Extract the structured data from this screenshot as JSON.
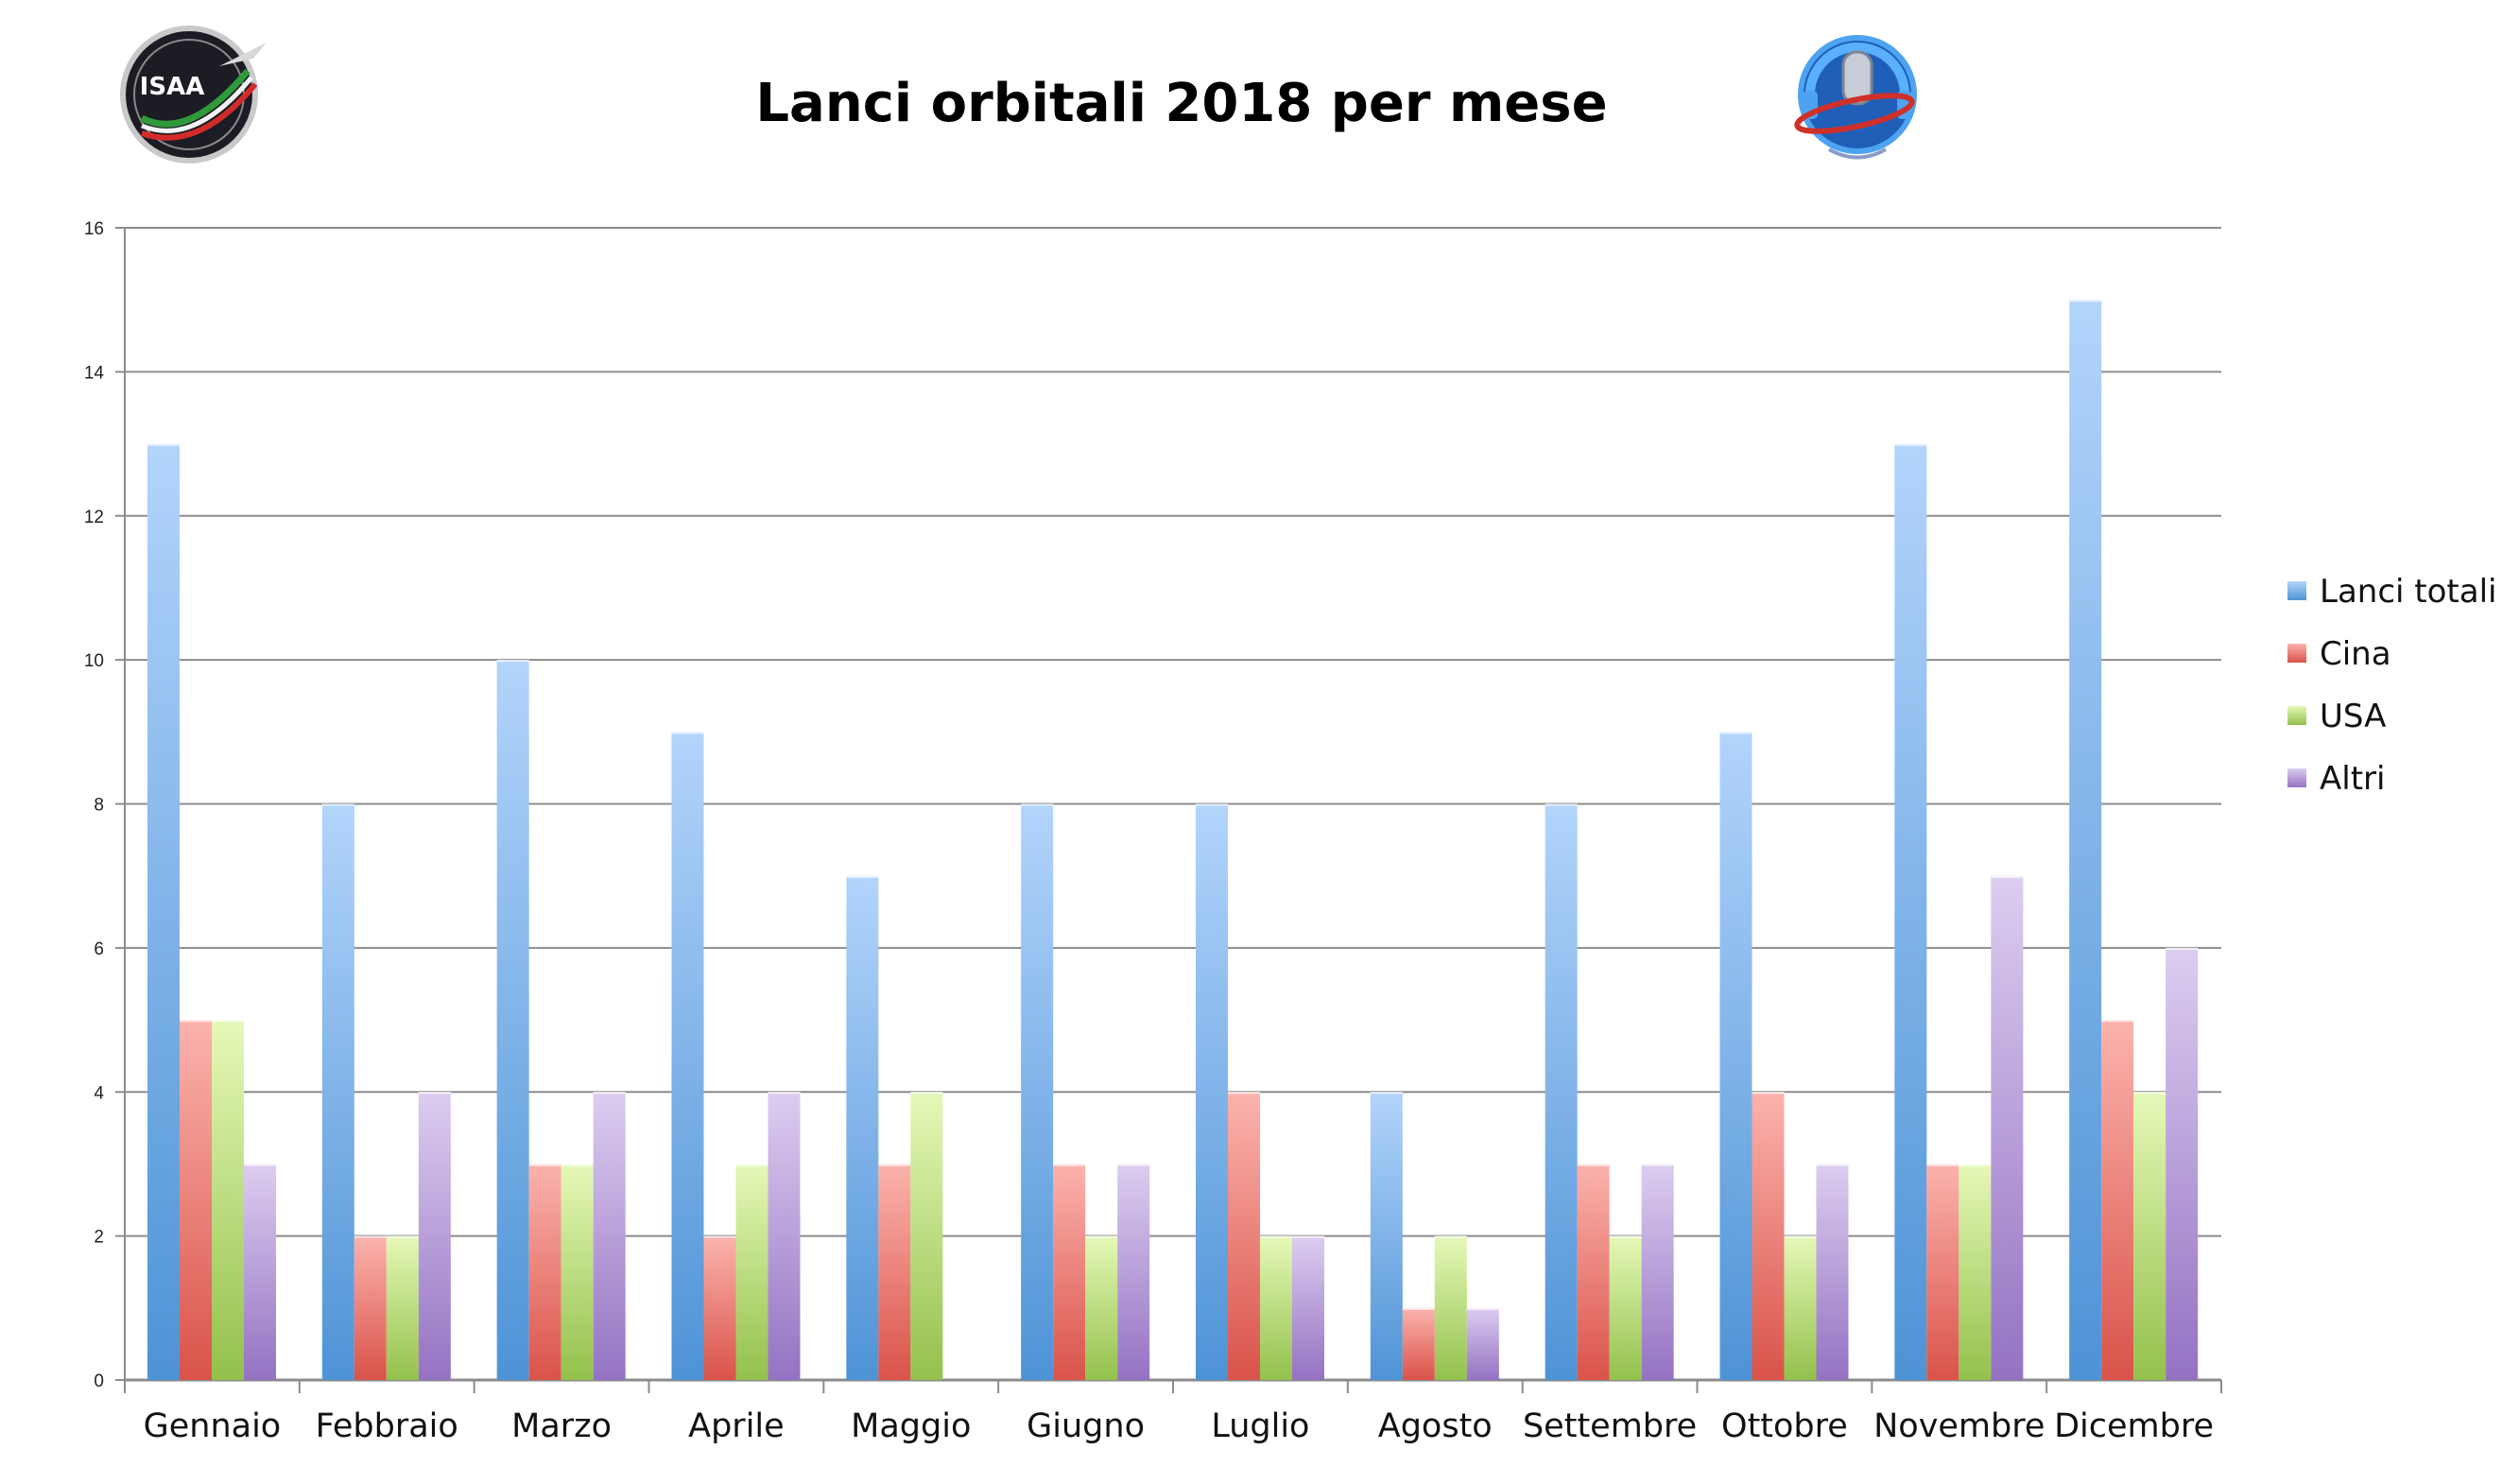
{
  "logos": {
    "left": {
      "text": "ISAA"
    },
    "right": {
      "text": ""
    }
  },
  "chart_data": {
    "type": "bar",
    "title": "Lanci orbitali 2018 per mese",
    "xlabel": "",
    "ylabel": "",
    "ylim": [
      0,
      16
    ],
    "yticks": [
      0,
      2,
      4,
      6,
      8,
      10,
      12,
      14,
      16
    ],
    "grid": true,
    "legend_position": "right",
    "categories": [
      "Gennaio",
      "Febbraio",
      "Marzo",
      "Aprile",
      "Maggio",
      "Giugno",
      "Luglio",
      "Agosto",
      "Settembre",
      "Ottobre",
      "Novembre",
      "Dicembre"
    ],
    "series": [
      {
        "name": "Lanci totali",
        "values": [
          13,
          8,
          10,
          9,
          7,
          8,
          8,
          4,
          8,
          9,
          13,
          15
        ],
        "color_light": "#b3d4fb",
        "color_dark": "#4e93d6"
      },
      {
        "name": "Cina",
        "values": [
          5,
          2,
          3,
          2,
          3,
          3,
          4,
          1,
          3,
          4,
          3,
          5
        ],
        "color_light": "#fbb3ad",
        "color_dark": "#d9534a"
      },
      {
        "name": "USA",
        "values": [
          5,
          2,
          3,
          3,
          4,
          2,
          2,
          2,
          2,
          2,
          3,
          4
        ],
        "color_light": "#e6f8b8",
        "color_dark": "#93c14c"
      },
      {
        "name": "Altri",
        "values": [
          3,
          4,
          4,
          4,
          0,
          3,
          2,
          1,
          3,
          3,
          7,
          6
        ],
        "color_light": "#dccdf0",
        "color_dark": "#9472c2"
      }
    ]
  }
}
